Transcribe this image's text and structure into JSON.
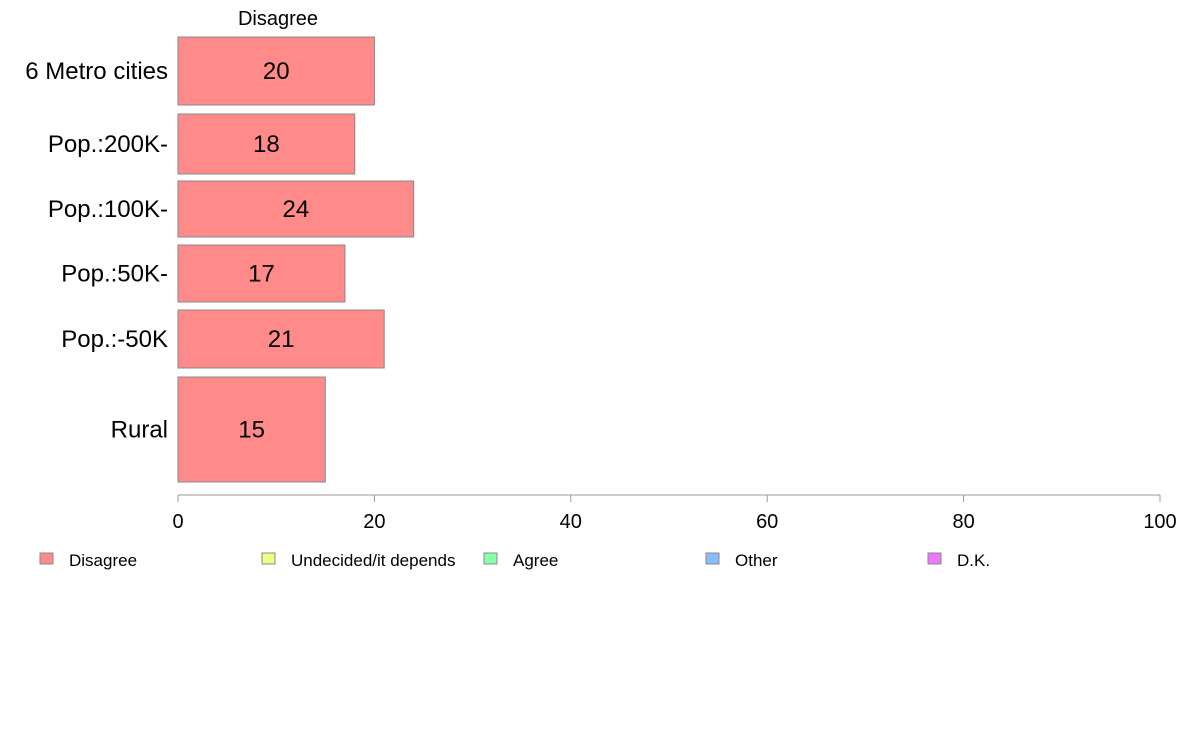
{
  "chart_data": {
    "type": "bar",
    "orientation": "horizontal",
    "column_title": "Disagree",
    "categories": [
      "6 Metro cities",
      "Pop.:200K-",
      "Pop.:100K-",
      "Pop.:50K-",
      "Pop.:-50K",
      "Rural"
    ],
    "series": [
      {
        "name": "Disagree",
        "values": [
          20,
          18,
          24,
          17,
          21,
          15
        ]
      }
    ],
    "value_labels": [
      "20",
      "18",
      "24",
      "17",
      "21",
      "15"
    ],
    "xlim": [
      0,
      100
    ],
    "xticks": [
      "0",
      "20",
      "40",
      "60",
      "80",
      "100"
    ],
    "xtick_values": [
      0,
      20,
      40,
      60,
      80,
      100
    ],
    "grid": false,
    "legend_position": "bottom",
    "legend": [
      {
        "label": "Disagree",
        "color": "#ff8a8a"
      },
      {
        "label": "Undecided/it depends",
        "color": "#eeff88"
      },
      {
        "label": "Agree",
        "color": "#88ffaa"
      },
      {
        "label": "Other",
        "color": "#88bbff"
      },
      {
        "label": "D.K.",
        "color": "#ee77ff"
      }
    ],
    "bar_color": "#ff8a8a"
  }
}
